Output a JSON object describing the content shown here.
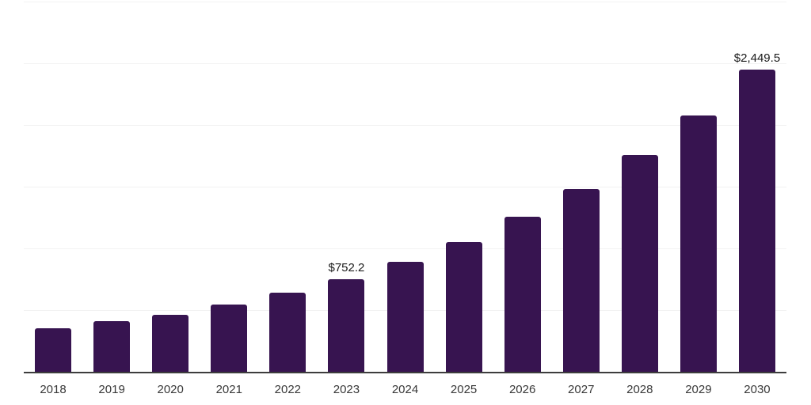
{
  "page": {
    "background": "#ffffff"
  },
  "chart_data": {
    "type": "bar",
    "title": "",
    "xlabel": "",
    "ylabel": "",
    "categories": [
      "2018",
      "2019",
      "2020",
      "2021",
      "2022",
      "2023",
      "2024",
      "2025",
      "2026",
      "2027",
      "2028",
      "2029",
      "2030"
    ],
    "values": [
      350,
      408,
      461,
      546,
      640,
      752.2,
      890,
      1054,
      1255,
      1480,
      1755,
      2080,
      2449.5
    ],
    "data_labels": [
      {
        "index": 5,
        "category": "2023",
        "text": "$752.2"
      },
      {
        "index": 12,
        "category": "2030",
        "text": "$2,449.5"
      }
    ],
    "ylim": [
      0,
      3000
    ],
    "gridline_step": 500,
    "grid": "horizontal",
    "legend": "none",
    "y_axis_labels_visible": false,
    "colors": {
      "bar": "#371450",
      "gridline": "#f2f2f2",
      "axis_line": "#3d3d3d",
      "tick_label": "#383838",
      "data_label": "#1a1a1a"
    }
  }
}
